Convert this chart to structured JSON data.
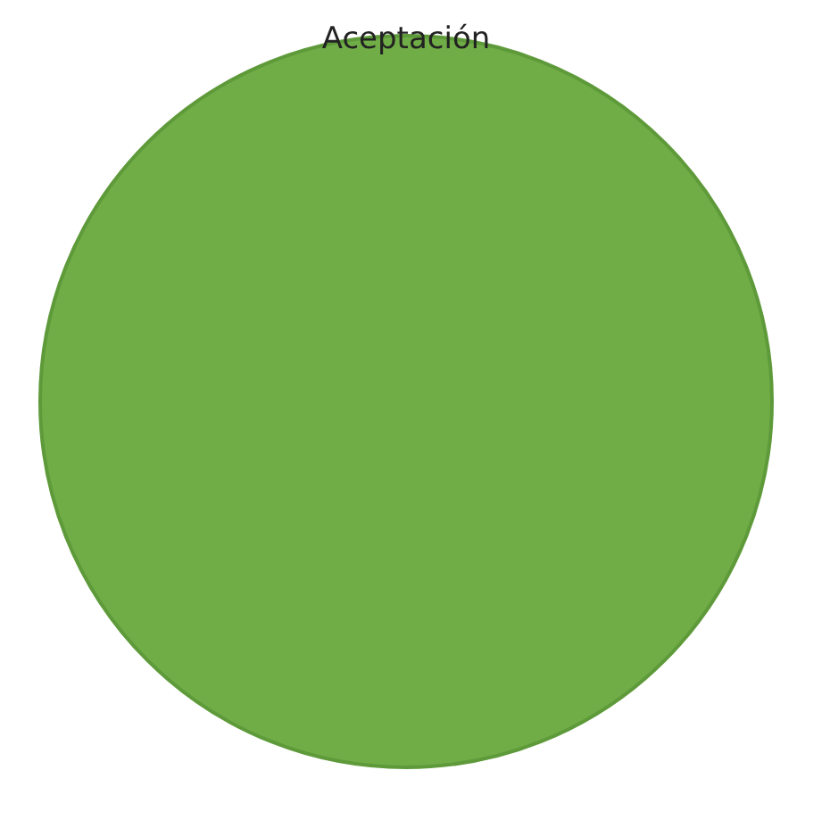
{
  "chart_data": {
    "type": "pie",
    "categories": [
      "Aceptación"
    ],
    "values": [
      100
    ],
    "colors": [
      "#70ad47"
    ]
  }
}
